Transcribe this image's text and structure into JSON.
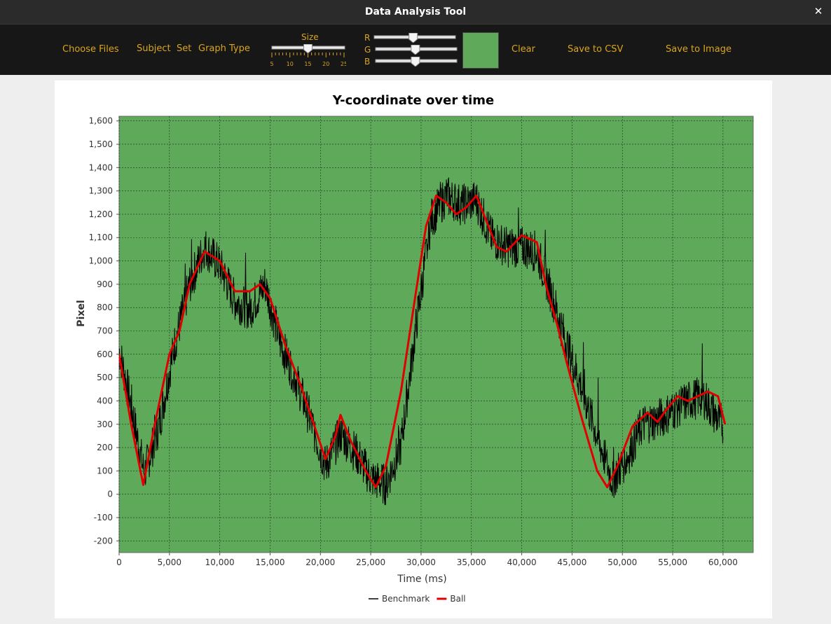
{
  "window": {
    "title": "Data Analysis Tool"
  },
  "toolbar": {
    "choose_files": "Choose Files",
    "subject": "Subject",
    "set": "Set",
    "graph_type": "Graph Type",
    "size_label": "Size",
    "size_ticks": [
      "5",
      "10",
      "15",
      "20",
      "25"
    ],
    "size_value": 15,
    "r_label": "R",
    "g_label": "G",
    "b_label": "B",
    "r_value": 0.48,
    "g_value": 0.49,
    "b_value": 0.49,
    "swatch_color": "#5faa5a",
    "clear": "Clear",
    "save_csv": "Save to CSV",
    "save_image": "Save to Image",
    "accent_color": "#d9a520"
  },
  "chart_data": {
    "type": "line",
    "title": "Y-coordinate over time",
    "xlabel": "Time (ms)",
    "ylabel": "Pixel",
    "xlim": [
      0,
      63000
    ],
    "ylim": [
      -250,
      1620
    ],
    "xticks": [
      0,
      5000,
      10000,
      15000,
      20000,
      25000,
      30000,
      35000,
      40000,
      45000,
      50000,
      55000,
      60000
    ],
    "xtick_labels": [
      "0",
      "5,000",
      "10,000",
      "15,000",
      "20,000",
      "25,000",
      "30,000",
      "35,000",
      "40,000",
      "45,000",
      "50,000",
      "55,000",
      "60,000"
    ],
    "yticks": [
      -200,
      -100,
      0,
      100,
      200,
      300,
      400,
      500,
      600,
      700,
      800,
      900,
      1000,
      1100,
      1200,
      1300,
      1400,
      1500,
      1600
    ],
    "ytick_labels": [
      "-200",
      "-100",
      "0",
      "100",
      "200",
      "300",
      "400",
      "500",
      "600",
      "700",
      "800",
      "900",
      "1,000",
      "1,100",
      "1,200",
      "1,300",
      "1,400",
      "1,500",
      "1,600"
    ],
    "grid": true,
    "plot_background": "#5faa5a",
    "legend_position": "bottom",
    "series": [
      {
        "name": "Benchmark",
        "color": "#000000",
        "x": [
          0,
          1000,
          2500,
          4000,
          5500,
          7000,
          8500,
          10000,
          11500,
          13000,
          14500,
          16000,
          17500,
          19000,
          20500,
          22000,
          23500,
          25000,
          26500,
          28000,
          29500,
          31000,
          32500,
          34000,
          35500,
          37000,
          38500,
          40000,
          41500,
          43000,
          44500,
          46000,
          47500,
          49000,
          50500,
          52000,
          53500,
          55000,
          56500,
          58000,
          59500,
          60000
        ],
        "y": [
          620,
          420,
          90,
          300,
          640,
          900,
          1060,
          980,
          830,
          790,
          900,
          650,
          500,
          320,
          120,
          260,
          180,
          70,
          40,
          210,
          720,
          1180,
          1280,
          1240,
          1260,
          1100,
          1060,
          1060,
          1040,
          850,
          640,
          450,
          250,
          60,
          160,
          300,
          320,
          360,
          400,
          420,
          320,
          300
        ]
      },
      {
        "name": "Ball",
        "color": "#e00000",
        "x": [
          0,
          1200,
          2400,
          3500,
          5000,
          6000,
          7000,
          8500,
          10000,
          11500,
          13000,
          14000,
          15000,
          16500,
          18000,
          19500,
          20500,
          21500,
          22000,
          23000,
          24500,
          25500,
          26500,
          28000,
          29500,
          30500,
          31500,
          32500,
          33500,
          34500,
          35500,
          36500,
          37500,
          38500,
          40000,
          41500,
          42500,
          43500,
          44500,
          46000,
          47500,
          48500,
          49500,
          51000,
          52500,
          53500,
          54500,
          55500,
          56500,
          57500,
          58500,
          59500,
          60200
        ],
        "y": [
          600,
          300,
          40,
          290,
          600,
          700,
          900,
          1040,
          1000,
          870,
          870,
          900,
          840,
          640,
          470,
          280,
          150,
          250,
          340,
          230,
          100,
          30,
          120,
          440,
          870,
          1150,
          1280,
          1250,
          1200,
          1230,
          1280,
          1170,
          1060,
          1040,
          1110,
          1080,
          880,
          730,
          560,
          320,
          100,
          30,
          120,
          290,
          350,
          310,
          370,
          420,
          400,
          420,
          440,
          420,
          300
        ]
      }
    ]
  }
}
